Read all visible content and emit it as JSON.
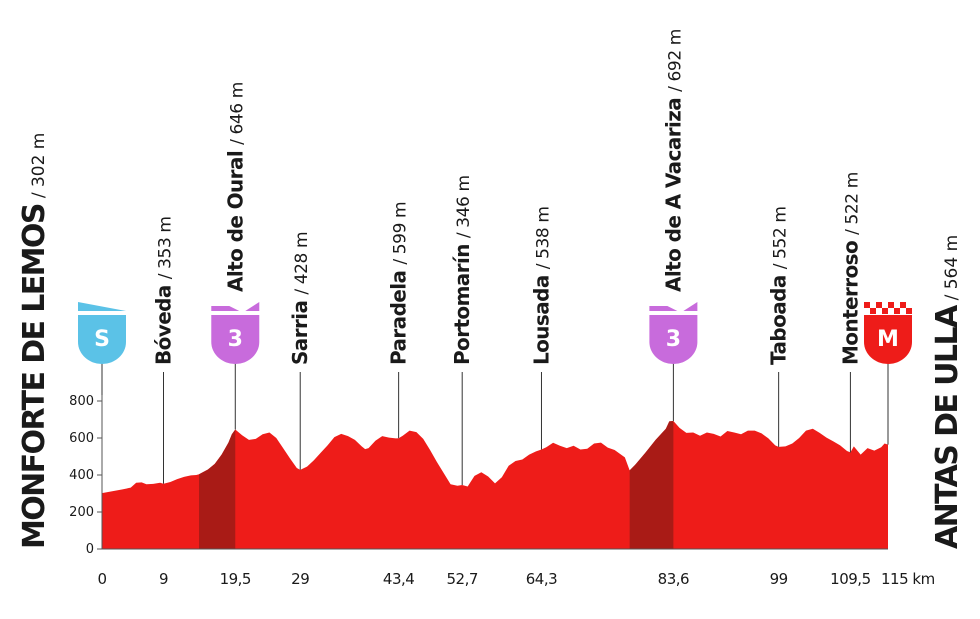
{
  "chart_data": {
    "type": "area",
    "x_unit": "km",
    "ylim": [
      0,
      800
    ],
    "y_ticks": [
      "0",
      "200",
      "400",
      "600",
      "800"
    ],
    "x_ticks": [
      {
        "km": 0,
        "label": "0"
      },
      {
        "km": 9,
        "label": "9"
      },
      {
        "km": 19.5,
        "label": "19,5"
      },
      {
        "km": 29,
        "label": "29"
      },
      {
        "km": 43.4,
        "label": "43,4"
      },
      {
        "km": 52.7,
        "label": "52,7"
      },
      {
        "km": 64.3,
        "label": "64,3"
      },
      {
        "km": 83.6,
        "label": "83,6"
      },
      {
        "km": 99,
        "label": "99"
      },
      {
        "km": 109.5,
        "label": "109,5"
      },
      {
        "km": 115,
        "label": "115 km"
      }
    ],
    "start": {
      "name": "MONFORTE DE LEMOS",
      "altitude": "/ 302 m",
      "badge": "S"
    },
    "finish": {
      "name": "ANTAS DE ULLA",
      "altitude": "/ 564 m",
      "badge": "M"
    },
    "waypoints": [
      {
        "km": 9,
        "name": "Bóveda",
        "altitude": "/ 353 m"
      },
      {
        "km": 19.5,
        "name": "Alto de Oural",
        "altitude": "/ 646 m",
        "badge": "3"
      },
      {
        "km": 29,
        "name": "Sarria",
        "altitude": "/ 428 m"
      },
      {
        "km": 43.4,
        "name": "Paradela",
        "altitude": "/ 599 m"
      },
      {
        "km": 52.7,
        "name": "Portomarín",
        "altitude": "/ 346 m"
      },
      {
        "km": 64.3,
        "name": "Lousada",
        "altitude": "/ 538 m"
      },
      {
        "km": 83.6,
        "name": "Alto de A Vacariza",
        "altitude": "/ 692 m",
        "badge": "3"
      },
      {
        "km": 99,
        "name": "Taboada",
        "altitude": "/ 552 m"
      },
      {
        "km": 109.5,
        "name": "Monterroso",
        "altitude": "/ 522 m"
      }
    ],
    "climbs": [
      {
        "from_km": 14.2,
        "to_km": 19.5
      },
      {
        "from_km": 77.2,
        "to_km": 83.6
      }
    ],
    "profile": [
      [
        0,
        302
      ],
      [
        1.5,
        312
      ],
      [
        3,
        322
      ],
      [
        4.2,
        332
      ],
      [
        5,
        358
      ],
      [
        5.8,
        360
      ],
      [
        6.5,
        350
      ],
      [
        7.5,
        352
      ],
      [
        8.5,
        358
      ],
      [
        9,
        353
      ],
      [
        10,
        362
      ],
      [
        11,
        378
      ],
      [
        12,
        390
      ],
      [
        13,
        398
      ],
      [
        13.8,
        400
      ],
      [
        14.2,
        404
      ],
      [
        15.5,
        430
      ],
      [
        16.5,
        460
      ],
      [
        17.5,
        510
      ],
      [
        18.5,
        575
      ],
      [
        19,
        620
      ],
      [
        19.5,
        646
      ],
      [
        20.5,
        615
      ],
      [
        21.5,
        590
      ],
      [
        22.5,
        595
      ],
      [
        23.5,
        620
      ],
      [
        24.5,
        630
      ],
      [
        25.5,
        600
      ],
      [
        26.5,
        545
      ],
      [
        27.5,
        490
      ],
      [
        28.5,
        438
      ],
      [
        29,
        428
      ],
      [
        30,
        445
      ],
      [
        31,
        480
      ],
      [
        32,
        520
      ],
      [
        33,
        560
      ],
      [
        34,
        605
      ],
      [
        35,
        622
      ],
      [
        36,
        610
      ],
      [
        37,
        590
      ],
      [
        38,
        555
      ],
      [
        38.5,
        540
      ],
      [
        39,
        545
      ],
      [
        40,
        585
      ],
      [
        41,
        610
      ],
      [
        42,
        602
      ],
      [
        43,
        598
      ],
      [
        43.4,
        599
      ],
      [
        44,
        612
      ],
      [
        45,
        640
      ],
      [
        46,
        632
      ],
      [
        47,
        595
      ],
      [
        48,
        535
      ],
      [
        49,
        470
      ],
      [
        50,
        410
      ],
      [
        51,
        350
      ],
      [
        52,
        342
      ],
      [
        52.7,
        346
      ],
      [
        53.5,
        338
      ],
      [
        54.5,
        395
      ],
      [
        55.5,
        415
      ],
      [
        56.5,
        392
      ],
      [
        57.5,
        355
      ],
      [
        58.5,
        388
      ],
      [
        59.5,
        450
      ],
      [
        60.5,
        476
      ],
      [
        61.5,
        484
      ],
      [
        62.5,
        510
      ],
      [
        63.5,
        528
      ],
      [
        64.3,
        538
      ],
      [
        65,
        550
      ],
      [
        66,
        574
      ],
      [
        67,
        558
      ],
      [
        68,
        545
      ],
      [
        69,
        558
      ],
      [
        70,
        538
      ],
      [
        71,
        542
      ],
      [
        72,
        570
      ],
      [
        73,
        575
      ],
      [
        74,
        548
      ],
      [
        75,
        535
      ],
      [
        76.5,
        495
      ],
      [
        77.2,
        425
      ],
      [
        78,
        455
      ],
      [
        79.5,
        520
      ],
      [
        81,
        590
      ],
      [
        82.5,
        650
      ],
      [
        83,
        690
      ],
      [
        83.6,
        692
      ],
      [
        84.5,
        655
      ],
      [
        85.5,
        628
      ],
      [
        86.5,
        630
      ],
      [
        87.5,
        612
      ],
      [
        88.5,
        630
      ],
      [
        89.5,
        622
      ],
      [
        90.5,
        608
      ],
      [
        91.5,
        638
      ],
      [
        92.5,
        630
      ],
      [
        93.5,
        620
      ],
      [
        94.5,
        640
      ],
      [
        95.5,
        640
      ],
      [
        96.5,
        625
      ],
      [
        97.5,
        598
      ],
      [
        98.5,
        560
      ],
      [
        99,
        552
      ],
      [
        100,
        555
      ],
      [
        101,
        570
      ],
      [
        102,
        600
      ],
      [
        103,
        640
      ],
      [
        104,
        650
      ],
      [
        105,
        628
      ],
      [
        106,
        602
      ],
      [
        107,
        582
      ],
      [
        108,
        560
      ],
      [
        109,
        530
      ],
      [
        109.5,
        522
      ],
      [
        110,
        555
      ],
      [
        111,
        510
      ],
      [
        112,
        545
      ],
      [
        113,
        532
      ],
      [
        114,
        550
      ],
      [
        114.5,
        570
      ],
      [
        115,
        564
      ]
    ]
  },
  "colors": {
    "profile_fill": "#ee1c19",
    "climb_fill": "#a91b16",
    "start_badge": "#5bc2e7",
    "climb_badge": "#c86bdc",
    "finish_badge": "#ee1c19",
    "axis_line": "#555555"
  }
}
